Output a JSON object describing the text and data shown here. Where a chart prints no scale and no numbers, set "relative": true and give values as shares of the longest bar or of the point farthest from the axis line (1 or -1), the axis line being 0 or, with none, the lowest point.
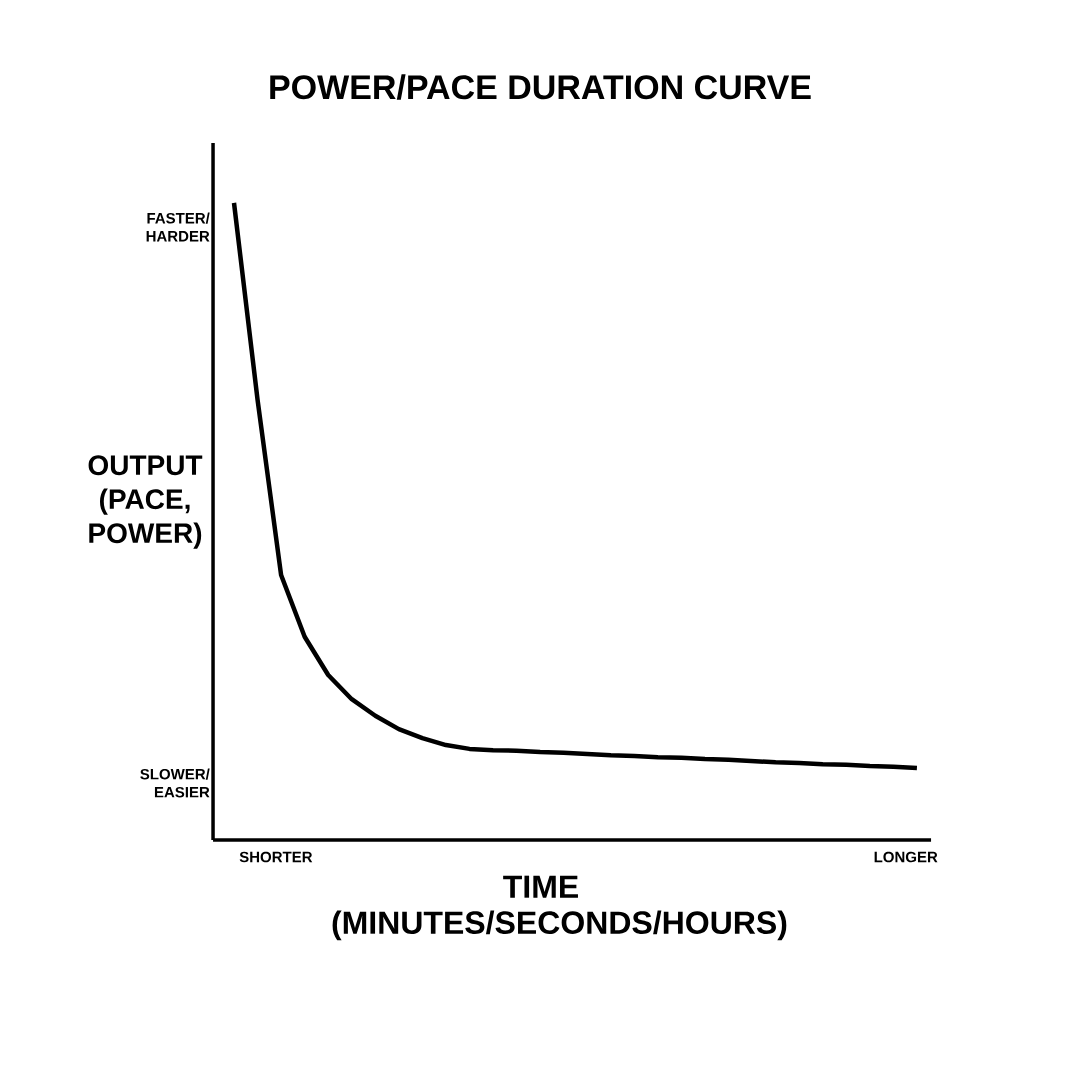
{
  "chart_data": {
    "type": "line",
    "title": "POWER/PACE DURATION CURVE",
    "xlabel": "TIME (MINUTES/SECONDS/HOURS)",
    "ylabel": "OUTPUT (PACE, POWER)",
    "relative": true,
    "annotations": [
      "FASTER/ HARDER",
      "SLOWER/ EASIER",
      "SHORTER",
      "LONGER"
    ],
    "categories": [
      null,
      null,
      null,
      null,
      null,
      null,
      null,
      null,
      null,
      null,
      null,
      null,
      null,
      null,
      null,
      null,
      null,
      null,
      null,
      null,
      null,
      null,
      null,
      null,
      null,
      null,
      null,
      null,
      null,
      null
    ],
    "series": [
      {
        "color": "#000000",
        "values": [
          1.0,
          0.691,
          0.416,
          0.319,
          0.259,
          0.221,
          0.195,
          0.174,
          0.16,
          0.149,
          0.143,
          0.141,
          0.14,
          0.138,
          0.137,
          0.135,
          0.133,
          0.132,
          0.13,
          0.129,
          0.127,
          0.126,
          0.124,
          0.122,
          0.121,
          0.119,
          0.118,
          0.116,
          0.115,
          0.113
        ]
      }
    ],
    "marker": "none",
    "line_style": "solid"
  }
}
